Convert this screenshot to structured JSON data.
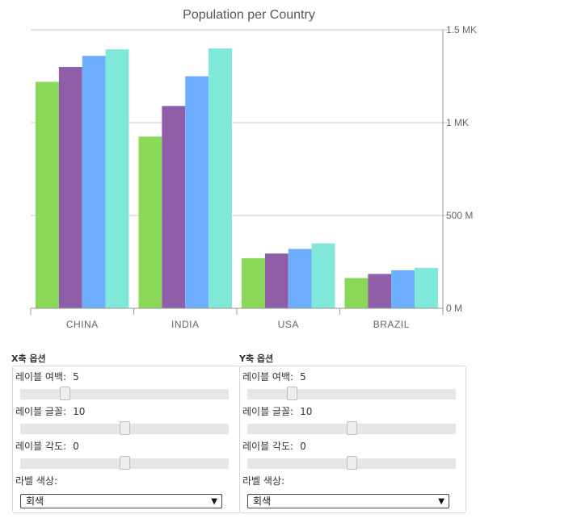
{
  "chart_data": {
    "type": "bar",
    "title": "Population per Country",
    "categories": [
      "CHINA",
      "INDIA",
      "USA",
      "BRAZIL"
    ],
    "series": [
      {
        "values": [
          1220,
          925,
          270,
          163
        ],
        "color": "#8ad858"
      },
      {
        "values": [
          1300,
          1090,
          295,
          185
        ],
        "color": "#8e5ea8"
      },
      {
        "values": [
          1360,
          1250,
          320,
          205
        ],
        "color": "#6cadff"
      },
      {
        "values": [
          1395,
          1400,
          350,
          218
        ],
        "color": "#80e8d8"
      }
    ],
    "ylim": [
      0,
      1500
    ],
    "yticks": [
      0,
      500,
      1000,
      1500
    ],
    "ytick_labels": [
      "0 M",
      "500 M",
      "1 MK",
      "1.5 MK"
    ],
    "grid": true,
    "yaxis_position": "right"
  },
  "x_options": {
    "title": "X축 옵션",
    "label_margin": {
      "label": "레이블 여백:",
      "value": "5",
      "fraction": 0.2
    },
    "label_font": {
      "label": "레이블 글꼴:",
      "value": "10",
      "fraction": 0.5
    },
    "label_angle": {
      "label": "레이블 각도:",
      "value": "0",
      "fraction": 0.5
    },
    "label_color": {
      "label": "라벨 색상:",
      "selected": "회색"
    }
  },
  "y_options": {
    "title": "Y축 옵션",
    "label_margin": {
      "label": "레이블 여백:",
      "value": "5",
      "fraction": 0.2
    },
    "label_font": {
      "label": "레이블 글꼴:",
      "value": "10",
      "fraction": 0.5
    },
    "label_angle": {
      "label": "레이블 각도:",
      "value": "0",
      "fraction": 0.5
    },
    "label_color": {
      "label": "라벨 색상:",
      "selected": "회색"
    }
  }
}
